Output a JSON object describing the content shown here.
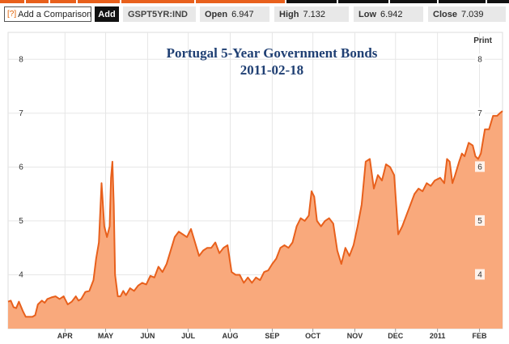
{
  "toolbar": {
    "comparison_icon": "[?]",
    "comparison_label": "Add a Comparison",
    "add_label": "Add",
    "symbol": "GSPT5YR:IND",
    "open_label": "Open",
    "open_value": "6.947",
    "high_label": "High",
    "high_value": "7.132",
    "low_label": "Low",
    "low_value": "6.942",
    "close_label": "Close",
    "close_value": "7.039"
  },
  "print_label": "Print",
  "colors": {
    "accent": "#e8601c",
    "area": "#f9a97c",
    "line": "#e8601c"
  },
  "chart_data": {
    "type": "area",
    "title": "Portugal 5-Year Government Bonds",
    "subtitle": "2011-02-18",
    "xlabel": "",
    "ylabel": "",
    "ylim": [
      3.0,
      8.5
    ],
    "yticks": [
      "8",
      "7",
      "6",
      "5",
      "4"
    ],
    "ytick_values": [
      8,
      7,
      6,
      5,
      4
    ],
    "xticks": [
      "APR",
      "MAY",
      "JUN",
      "JUL",
      "AUG",
      "SEP",
      "OCT",
      "NOV",
      "DEC",
      "2011",
      "FEB"
    ],
    "xtick_dates": [
      "2010-04-01",
      "2010-05-01",
      "2010-06-01",
      "2010-07-01",
      "2010-08-01",
      "2010-09-01",
      "2010-10-01",
      "2010-11-01",
      "2010-12-01",
      "2011-01-01",
      "2011-02-01"
    ],
    "xrange": [
      "2010-02-18",
      "2011-02-18"
    ],
    "grid": true,
    "legend": "none",
    "series": [
      {
        "points": [
          [
            "2010-02-18",
            3.5
          ],
          [
            "2010-02-20",
            3.52
          ],
          [
            "2010-02-22",
            3.4
          ],
          [
            "2010-02-24",
            3.38
          ],
          [
            "2010-02-26",
            3.5
          ],
          [
            "2010-03-01",
            3.32
          ],
          [
            "2010-03-03",
            3.22
          ],
          [
            "2010-03-05",
            3.22
          ],
          [
            "2010-03-08",
            3.22
          ],
          [
            "2010-03-10",
            3.25
          ],
          [
            "2010-03-12",
            3.45
          ],
          [
            "2010-03-15",
            3.52
          ],
          [
            "2010-03-17",
            3.48
          ],
          [
            "2010-03-19",
            3.55
          ],
          [
            "2010-03-22",
            3.58
          ],
          [
            "2010-03-25",
            3.6
          ],
          [
            "2010-03-28",
            3.55
          ],
          [
            "2010-03-31",
            3.6
          ],
          [
            "2010-04-03",
            3.45
          ],
          [
            "2010-04-06",
            3.5
          ],
          [
            "2010-04-09",
            3.6
          ],
          [
            "2010-04-11",
            3.52
          ],
          [
            "2010-04-13",
            3.55
          ],
          [
            "2010-04-16",
            3.68
          ],
          [
            "2010-04-19",
            3.7
          ],
          [
            "2010-04-22",
            3.9
          ],
          [
            "2010-04-24",
            4.3
          ],
          [
            "2010-04-26",
            4.6
          ],
          [
            "2010-04-28",
            5.7
          ],
          [
            "2010-04-30",
            4.9
          ],
          [
            "2010-05-02",
            4.7
          ],
          [
            "2010-05-04",
            4.9
          ],
          [
            "2010-05-05",
            5.8
          ],
          [
            "2010-05-06",
            6.1
          ],
          [
            "2010-05-07",
            5.3
          ],
          [
            "2010-05-08",
            4.0
          ],
          [
            "2010-05-10",
            3.6
          ],
          [
            "2010-05-12",
            3.6
          ],
          [
            "2010-05-14",
            3.7
          ],
          [
            "2010-05-16",
            3.62
          ],
          [
            "2010-05-19",
            3.75
          ],
          [
            "2010-05-22",
            3.7
          ],
          [
            "2010-05-25",
            3.8
          ],
          [
            "2010-05-28",
            3.85
          ],
          [
            "2010-05-31",
            3.82
          ],
          [
            "2010-06-03",
            3.98
          ],
          [
            "2010-06-06",
            3.95
          ],
          [
            "2010-06-09",
            4.15
          ],
          [
            "2010-06-12",
            4.05
          ],
          [
            "2010-06-15",
            4.2
          ],
          [
            "2010-06-18",
            4.45
          ],
          [
            "2010-06-21",
            4.7
          ],
          [
            "2010-06-24",
            4.8
          ],
          [
            "2010-06-27",
            4.75
          ],
          [
            "2010-06-30",
            4.7
          ],
          [
            "2010-07-03",
            4.85
          ],
          [
            "2010-07-06",
            4.6
          ],
          [
            "2010-07-09",
            4.35
          ],
          [
            "2010-07-12",
            4.45
          ],
          [
            "2010-07-15",
            4.5
          ],
          [
            "2010-07-18",
            4.5
          ],
          [
            "2010-07-21",
            4.6
          ],
          [
            "2010-07-24",
            4.4
          ],
          [
            "2010-07-27",
            4.5
          ],
          [
            "2010-07-30",
            4.55
          ],
          [
            "2010-08-02",
            4.05
          ],
          [
            "2010-08-05",
            4.0
          ],
          [
            "2010-08-08",
            4.0
          ],
          [
            "2010-08-11",
            3.85
          ],
          [
            "2010-08-14",
            3.95
          ],
          [
            "2010-08-17",
            3.85
          ],
          [
            "2010-08-20",
            3.95
          ],
          [
            "2010-08-23",
            3.9
          ],
          [
            "2010-08-26",
            4.05
          ],
          [
            "2010-08-29",
            4.08
          ],
          [
            "2010-09-01",
            4.2
          ],
          [
            "2010-09-04",
            4.3
          ],
          [
            "2010-09-07",
            4.5
          ],
          [
            "2010-09-10",
            4.55
          ],
          [
            "2010-09-13",
            4.5
          ],
          [
            "2010-09-16",
            4.6
          ],
          [
            "2010-09-19",
            4.9
          ],
          [
            "2010-09-22",
            5.05
          ],
          [
            "2010-09-25",
            5.0
          ],
          [
            "2010-09-28",
            5.1
          ],
          [
            "2010-09-30",
            5.55
          ],
          [
            "2010-10-02",
            5.45
          ],
          [
            "2010-10-04",
            5.0
          ],
          [
            "2010-10-07",
            4.9
          ],
          [
            "2010-10-10",
            5.0
          ],
          [
            "2010-10-13",
            5.05
          ],
          [
            "2010-10-16",
            4.95
          ],
          [
            "2010-10-19",
            4.45
          ],
          [
            "2010-10-22",
            4.2
          ],
          [
            "2010-10-25",
            4.5
          ],
          [
            "2010-10-28",
            4.35
          ],
          [
            "2010-10-31",
            4.55
          ],
          [
            "2010-11-03",
            4.9
          ],
          [
            "2010-11-06",
            5.3
          ],
          [
            "2010-11-09",
            6.1
          ],
          [
            "2010-11-12",
            6.15
          ],
          [
            "2010-11-15",
            5.6
          ],
          [
            "2010-11-18",
            5.85
          ],
          [
            "2010-11-21",
            5.75
          ],
          [
            "2010-11-24",
            6.05
          ],
          [
            "2010-11-27",
            6.0
          ],
          [
            "2010-11-30",
            5.85
          ],
          [
            "2010-12-03",
            4.75
          ],
          [
            "2010-12-06",
            4.9
          ],
          [
            "2010-12-09",
            5.1
          ],
          [
            "2010-12-12",
            5.3
          ],
          [
            "2010-12-15",
            5.5
          ],
          [
            "2010-12-18",
            5.6
          ],
          [
            "2010-12-21",
            5.55
          ],
          [
            "2010-12-24",
            5.7
          ],
          [
            "2010-12-27",
            5.65
          ],
          [
            "2010-12-30",
            5.75
          ],
          [
            "2011-01-03",
            5.8
          ],
          [
            "2011-01-06",
            5.7
          ],
          [
            "2011-01-08",
            6.15
          ],
          [
            "2011-01-10",
            6.1
          ],
          [
            "2011-01-12",
            5.7
          ],
          [
            "2011-01-14",
            5.85
          ],
          [
            "2011-01-17",
            6.1
          ],
          [
            "2011-01-19",
            6.25
          ],
          [
            "2011-01-21",
            6.2
          ],
          [
            "2011-01-24",
            6.45
          ],
          [
            "2011-01-27",
            6.4
          ],
          [
            "2011-01-29",
            6.2
          ],
          [
            "2011-01-31",
            6.15
          ],
          [
            "2011-02-02",
            6.25
          ],
          [
            "2011-02-05",
            6.7
          ],
          [
            "2011-02-08",
            6.7
          ],
          [
            "2011-02-11",
            6.95
          ],
          [
            "2011-02-14",
            6.95
          ],
          [
            "2011-02-16",
            7.0
          ],
          [
            "2011-02-18",
            7.039
          ]
        ]
      }
    ]
  }
}
